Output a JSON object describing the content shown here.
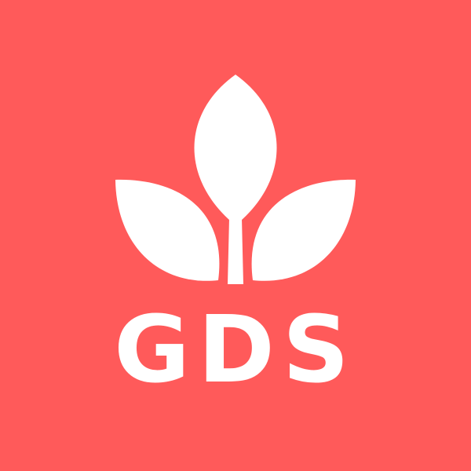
{
  "brand": {
    "wordmark": "GDS",
    "icon": "three-leaf-sprout-icon"
  },
  "colors": {
    "background": "#FF5A5A",
    "foreground": "#FFFFFF"
  }
}
